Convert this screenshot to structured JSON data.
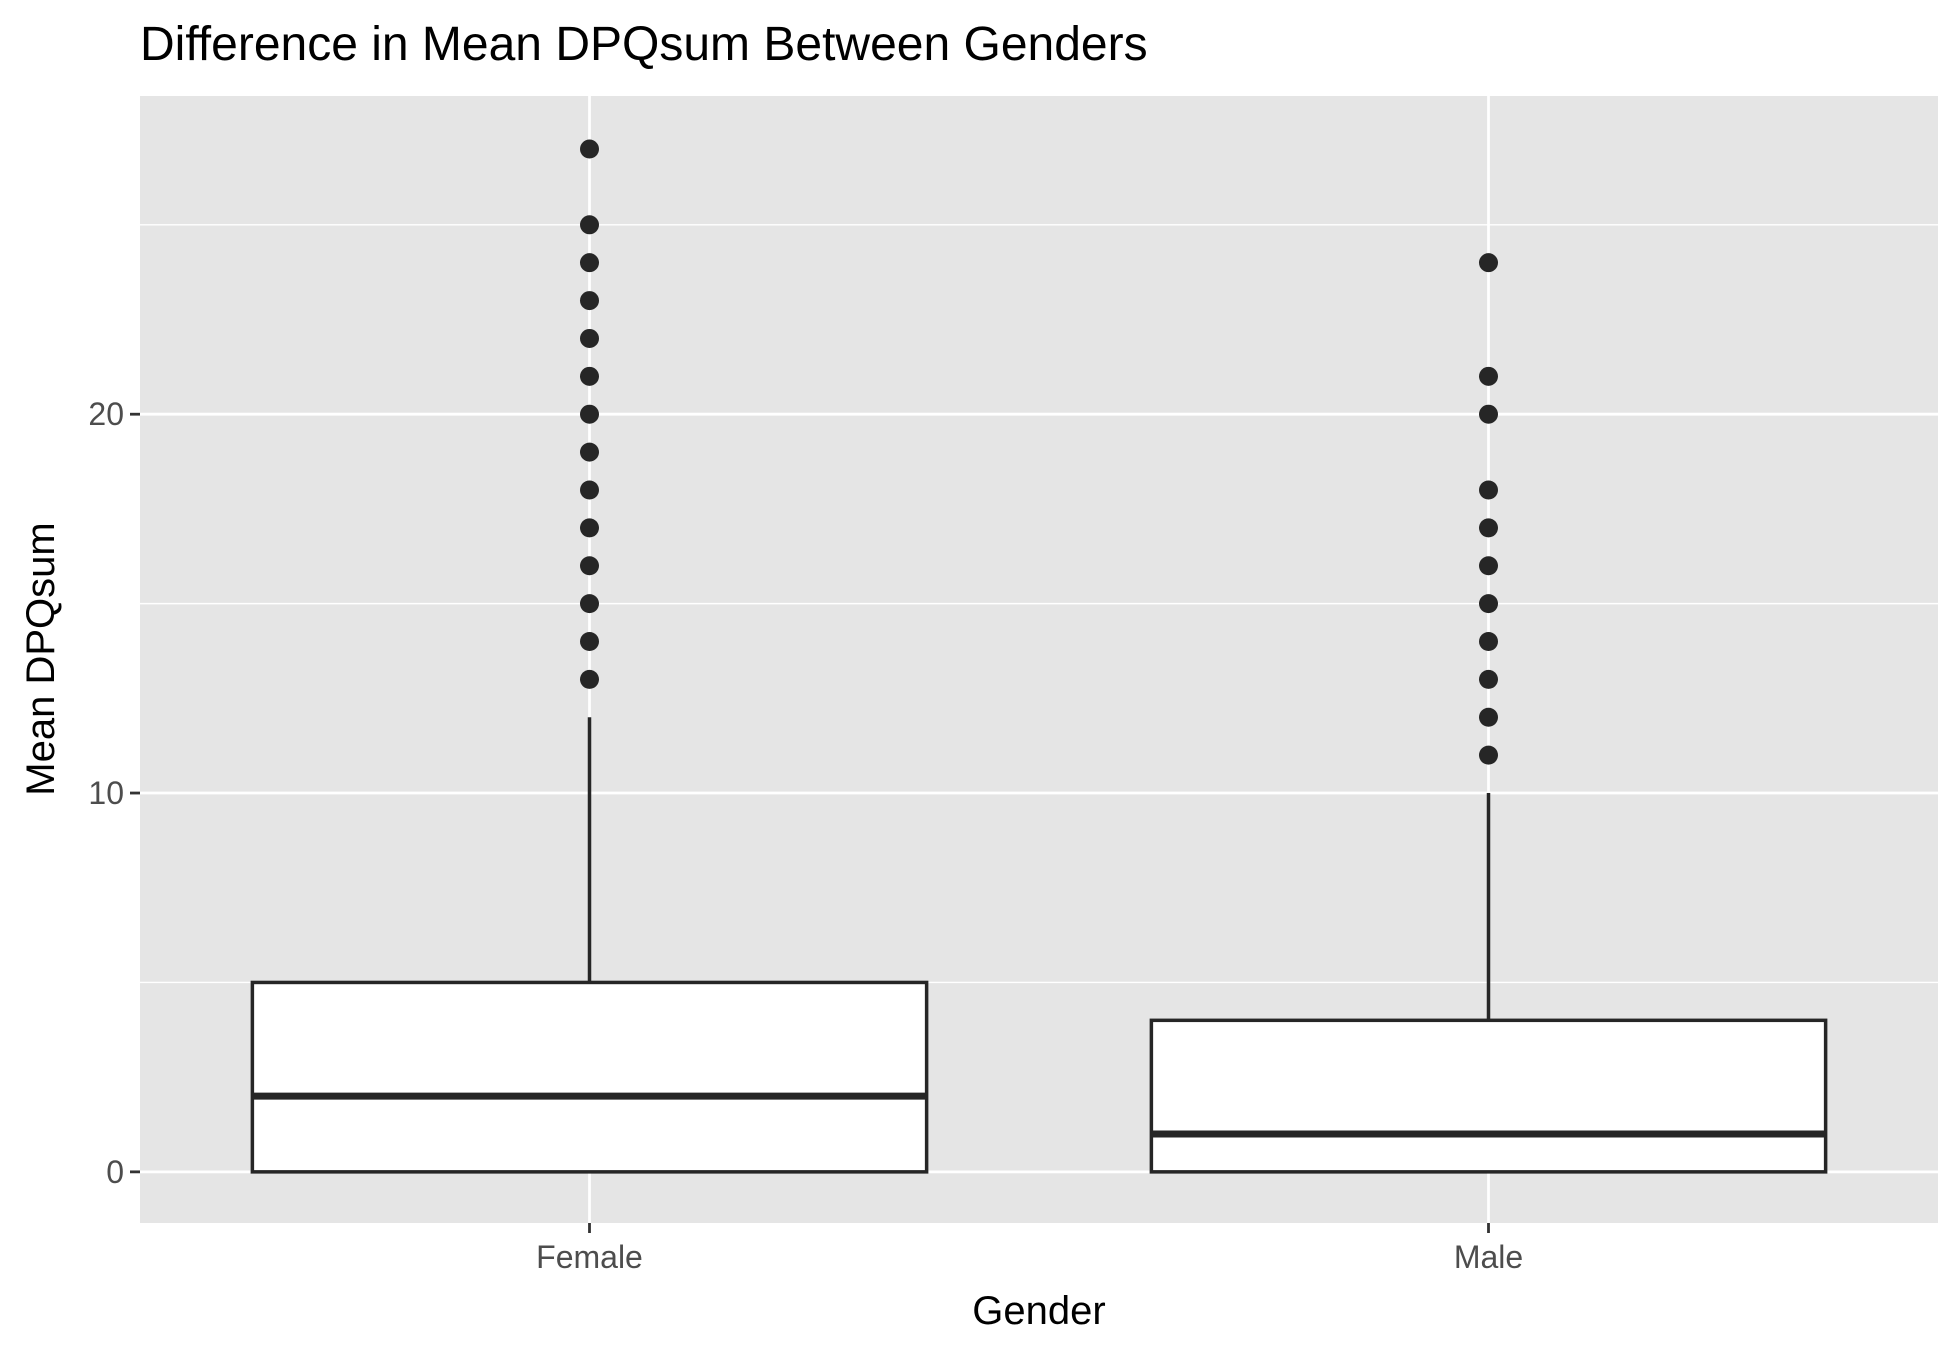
{
  "chart_data": {
    "type": "boxplot",
    "title": "Difference in Mean DPQsum Between Genders",
    "xlabel": "Gender",
    "ylabel": "Mean DPQsum",
    "categories": [
      "Female",
      "Male"
    ],
    "yticks": [
      0,
      10,
      20
    ],
    "ylim": [
      -1.35,
      28.4
    ],
    "grid": true,
    "colors": {
      "panel": "#e5e5e5",
      "grid": "#ffffff",
      "box_fill": "#ffffff",
      "box_stroke": "#262626",
      "outlier": "#262626",
      "tick_text": "#4d4d4d",
      "tick_mark": "#333333"
    },
    "boxes": [
      {
        "category": "Female",
        "min": 0,
        "q1": 0,
        "median": 2,
        "q3": 5,
        "max": 12,
        "outliers": [
          13,
          14,
          15,
          16,
          17,
          18,
          19,
          20,
          21,
          22,
          23,
          24,
          25,
          27
        ]
      },
      {
        "category": "Male",
        "min": 0,
        "q1": 0,
        "median": 1,
        "q3": 4,
        "max": 10,
        "outliers": [
          11,
          12,
          13,
          14,
          15,
          16,
          17,
          18,
          20,
          21,
          24
        ]
      }
    ]
  }
}
